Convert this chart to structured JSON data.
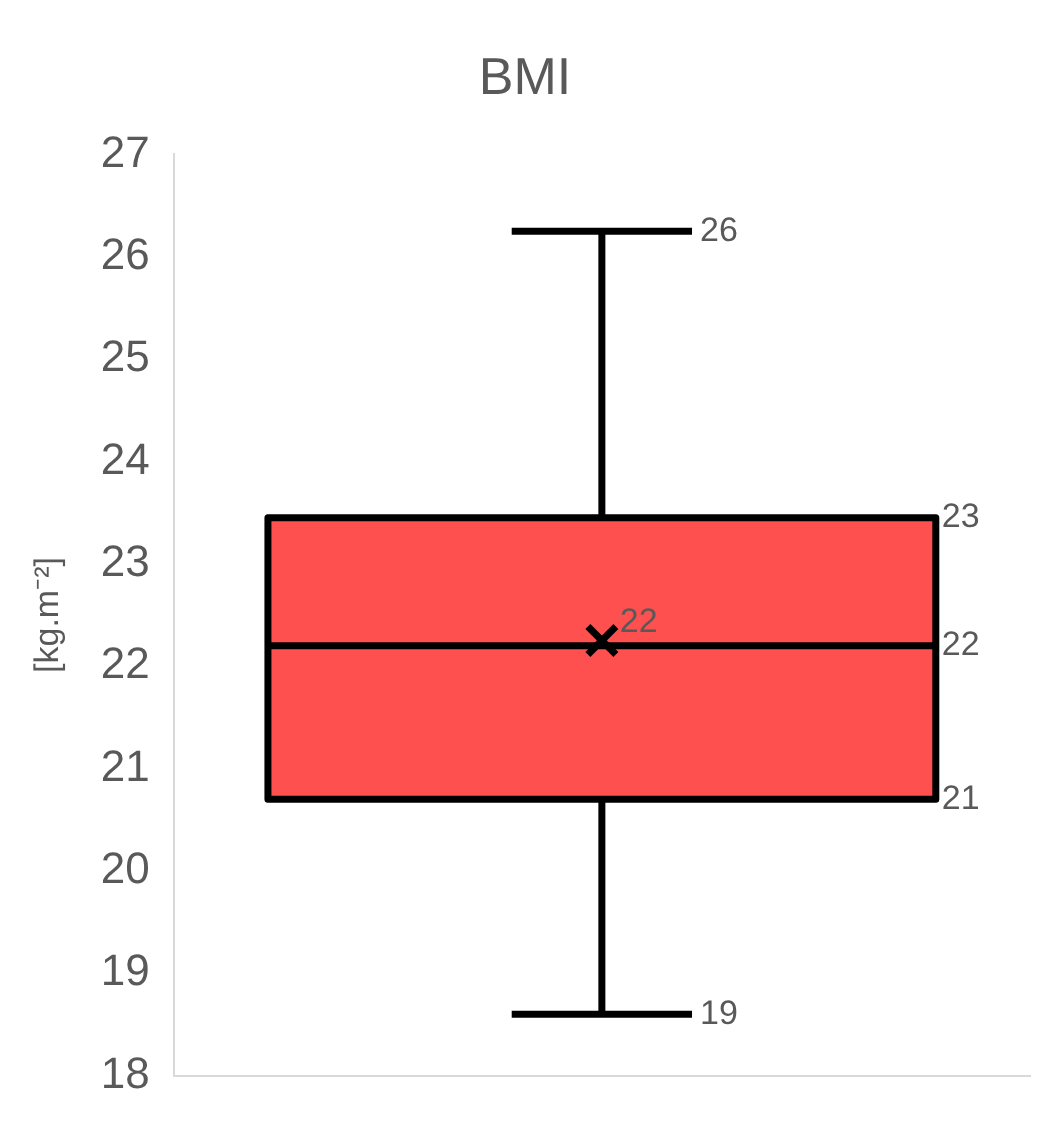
{
  "chart_data": {
    "type": "box",
    "title": "BMI",
    "ylabel": "[kg.m⁻²]",
    "categories": [
      null
    ],
    "color": "#ff5050",
    "boxes": [
      {
        "low": 18.6,
        "q1": 20.7,
        "median": 22.2,
        "q3": 23.45,
        "high": 26.25,
        "mean": 22.25
      }
    ],
    "ylim": [
      18,
      27
    ],
    "yticks": [
      18,
      19,
      20,
      21,
      22,
      23,
      24,
      25,
      26,
      27
    ],
    "grid": false,
    "legend": false,
    "annotations": [
      "26",
      "23",
      "22",
      "22",
      "21",
      "19"
    ]
  }
}
